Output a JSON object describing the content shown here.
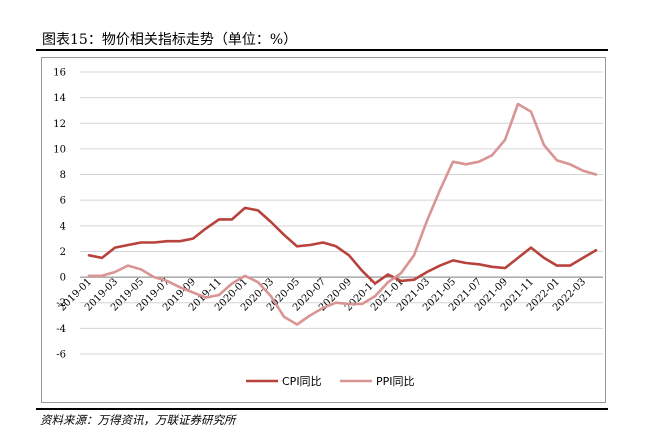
{
  "header": {
    "title": "图表15：物价相关指标走势（单位：%）"
  },
  "footer": {
    "source": "资料来源：万得资讯，万联证券研究所"
  },
  "chart_data": {
    "type": "line",
    "title": "物价相关指标走势（单位：%）",
    "xlabel": "",
    "ylabel": "",
    "ylim": [
      -6,
      16
    ],
    "yticks": [
      "16",
      "14",
      "12",
      "10",
      "8",
      "6",
      "4",
      "2",
      "0",
      "-2",
      "-4",
      "-6"
    ],
    "grid": "horizontal",
    "legend": "bottom-center",
    "x": [
      "2019-01",
      "2019-02",
      "2019-03",
      "2019-04",
      "2019-05",
      "2019-06",
      "2019-07",
      "2019-08",
      "2019-09",
      "2019-10",
      "2019-11",
      "2019-12",
      "2020-01",
      "2020-02",
      "2020-03",
      "2020-04",
      "2020-05",
      "2020-06",
      "2020-07",
      "2020-08",
      "2020-09",
      "2020-10",
      "2020-11",
      "2020-12",
      "2021-01",
      "2021-02",
      "2021-03",
      "2021-04",
      "2021-05",
      "2021-06",
      "2021-07",
      "2021-08",
      "2021-09",
      "2021-10",
      "2021-11",
      "2021-12",
      "2022-01",
      "2022-02",
      "2022-03",
      "2022-04"
    ],
    "xtick_labels": [
      "2019-01",
      "2019-03",
      "2019-05",
      "2019-07",
      "2019-09",
      "2019-11",
      "2020-01",
      "2020-03",
      "2020-05",
      "2020-07",
      "2020-09",
      "2020-11",
      "2021-01",
      "2021-03",
      "2021-05",
      "2021-07",
      "2021-09",
      "2021-11",
      "2022-01",
      "2022-03"
    ],
    "series": [
      {
        "name": "CPI同比",
        "color": "#b8423c",
        "values": [
          1.7,
          1.5,
          2.3,
          2.5,
          2.7,
          2.7,
          2.8,
          2.8,
          3.0,
          3.8,
          4.5,
          4.5,
          5.4,
          5.2,
          4.3,
          3.3,
          2.4,
          2.5,
          2.7,
          2.4,
          1.7,
          0.5,
          -0.5,
          0.2,
          -0.3,
          -0.2,
          0.4,
          0.9,
          1.3,
          1.1,
          1.0,
          0.8,
          0.7,
          1.5,
          2.3,
          1.5,
          0.9,
          0.9,
          1.5,
          2.1
        ]
      },
      {
        "name": "PPI同比",
        "color": "#d99594",
        "values": [
          0.1,
          0.1,
          0.4,
          0.9,
          0.6,
          0.0,
          -0.3,
          -0.8,
          -1.2,
          -1.6,
          -1.4,
          -0.5,
          0.1,
          -0.4,
          -1.5,
          -3.1,
          -3.7,
          -3.0,
          -2.4,
          -2.0,
          -2.1,
          -2.1,
          -1.5,
          -0.4,
          0.3,
          1.7,
          4.4,
          6.8,
          9.0,
          8.8,
          9.0,
          9.5,
          10.7,
          13.5,
          12.9,
          10.3,
          9.1,
          8.8,
          8.3,
          8.0
        ]
      }
    ]
  }
}
